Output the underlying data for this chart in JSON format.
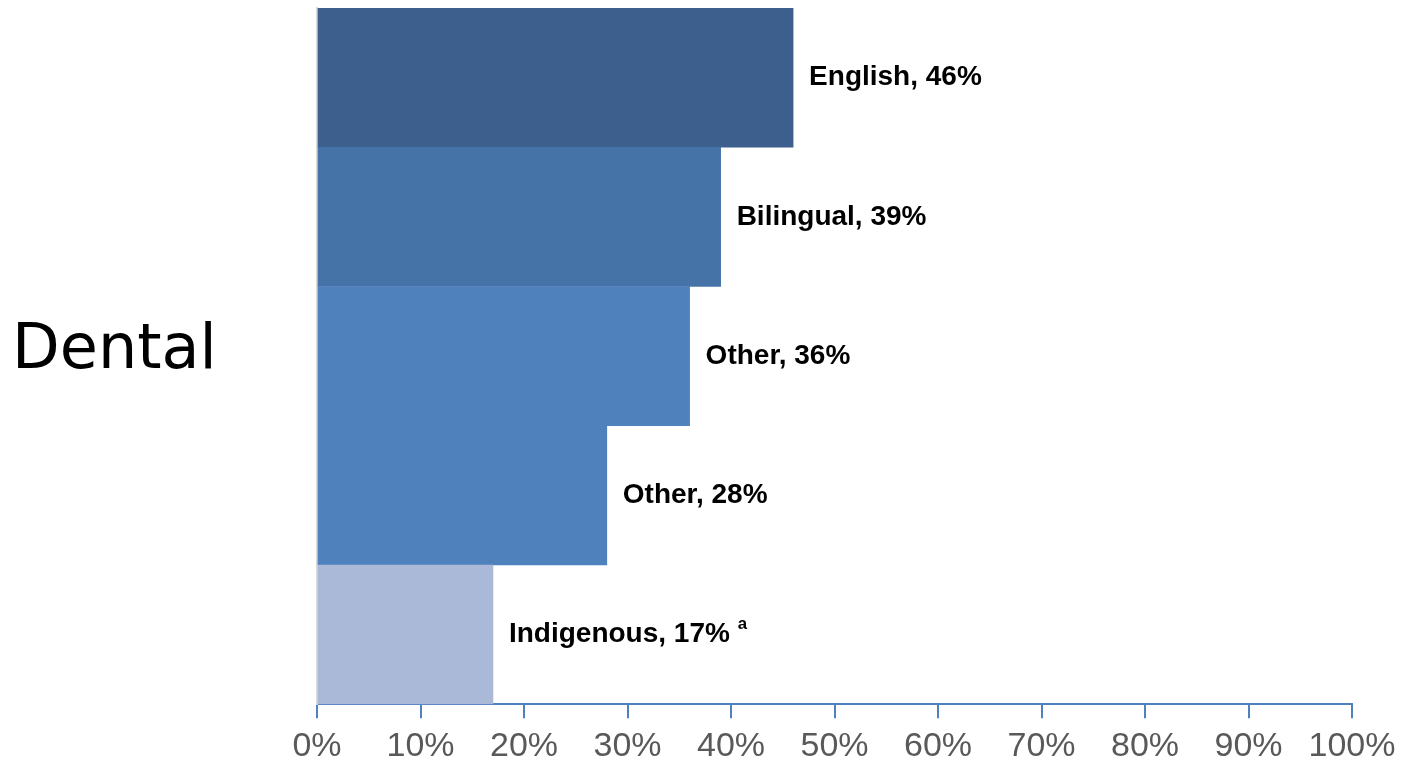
{
  "chart_data": {
    "type": "bar",
    "orientation": "horizontal",
    "ylabel": "Dental",
    "categories": [
      null,
      null,
      null,
      null,
      null
    ],
    "values": [
      46,
      39,
      36,
      28,
      17
    ],
    "colors": [
      "#3c5f8e",
      "#4573a7",
      "#4f81bd",
      "#4f81bd",
      "#aab9d8"
    ],
    "value_labels": [
      "English, 46%",
      "Bilingual, 39%",
      "Other, 36%",
      "Other, 28%",
      "Indigenous, 17% $^{a}$"
    ],
    "xlim": [
      0,
      100
    ],
    "xticks": [
      {
        "value": 0,
        "label": "0%"
      },
      {
        "value": 10,
        "label": "10%"
      },
      {
        "value": 20,
        "label": "20%"
      },
      {
        "value": 30,
        "label": "30%"
      },
      {
        "value": 40,
        "label": "40%"
      },
      {
        "value": 50,
        "label": "50%"
      },
      {
        "value": 60,
        "label": "60%"
      },
      {
        "value": 70,
        "label": "70%"
      },
      {
        "value": 80,
        "label": "80%"
      },
      {
        "value": 90,
        "label": "90%"
      },
      {
        "value": 100,
        "label": "100%"
      }
    ],
    "grid": false,
    "legend": false
  }
}
